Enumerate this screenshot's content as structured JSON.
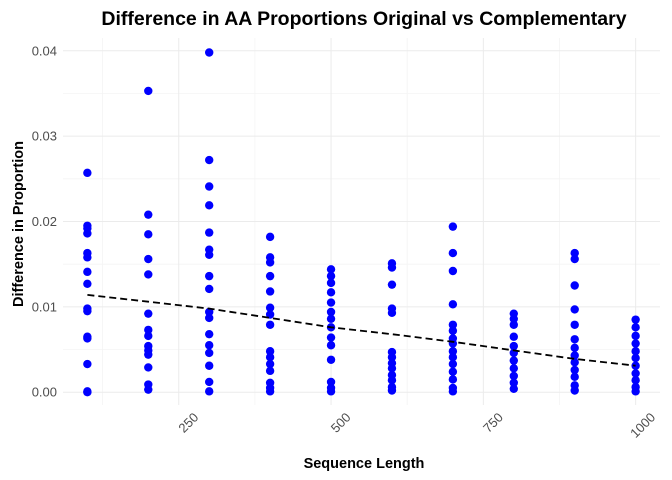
{
  "chart_data": {
    "type": "scatter",
    "title": "Difference in AA Proportions Original vs Complementary",
    "xlabel": "Sequence Length",
    "ylabel": "Difference in Proportion",
    "xlim": [
      60,
      1040
    ],
    "ylim": [
      -0.0015,
      0.0415
    ],
    "x_ticks": [
      250,
      500,
      750,
      1000
    ],
    "x_tick_labels": [
      "250",
      "500",
      "750",
      "1000"
    ],
    "y_ticks": [
      0.0,
      0.01,
      0.02,
      0.03,
      0.04
    ],
    "y_tick_labels": [
      "0.00",
      "0.01",
      "0.02",
      "0.03",
      "0.04"
    ],
    "grid": true,
    "point_color": "#0000ff",
    "trend_color": "#000000",
    "trend_style": "dashed",
    "trend_line": {
      "x": [
        100,
        200,
        300,
        400,
        500,
        600,
        700,
        800,
        900,
        1000
      ],
      "y": [
        0.0114,
        0.0106,
        0.0098,
        0.0087,
        0.0076,
        0.0068,
        0.0059,
        0.0049,
        0.0039,
        0.0031
      ]
    },
    "points": [
      [
        100,
        0.0257
      ],
      [
        100,
        0.0195
      ],
      [
        100,
        0.0192
      ],
      [
        100,
        0.0186
      ],
      [
        100,
        0.0163
      ],
      [
        100,
        0.0158
      ],
      [
        100,
        0.0141
      ],
      [
        100,
        0.0127
      ],
      [
        100,
        0.0098
      ],
      [
        100,
        0.0095
      ],
      [
        100,
        0.0065
      ],
      [
        100,
        0.0063
      ],
      [
        100,
        0.0033
      ],
      [
        100,
        0.0001
      ],
      [
        100,
        0.0
      ],
      [
        200,
        0.0353
      ],
      [
        200,
        0.0208
      ],
      [
        200,
        0.0185
      ],
      [
        200,
        0.0156
      ],
      [
        200,
        0.0138
      ],
      [
        200,
        0.0092
      ],
      [
        200,
        0.0073
      ],
      [
        200,
        0.0066
      ],
      [
        200,
        0.0054
      ],
      [
        200,
        0.0049
      ],
      [
        200,
        0.0044
      ],
      [
        200,
        0.0029
      ],
      [
        200,
        0.0009
      ],
      [
        200,
        0.0003
      ],
      [
        300,
        0.0398
      ],
      [
        300,
        0.0272
      ],
      [
        300,
        0.0241
      ],
      [
        300,
        0.0219
      ],
      [
        300,
        0.0187
      ],
      [
        300,
        0.0167
      ],
      [
        300,
        0.0161
      ],
      [
        300,
        0.0136
      ],
      [
        300,
        0.0121
      ],
      [
        300,
        0.0094
      ],
      [
        300,
        0.0087
      ],
      [
        300,
        0.0068
      ],
      [
        300,
        0.0055
      ],
      [
        300,
        0.0046
      ],
      [
        300,
        0.0031
      ],
      [
        300,
        0.0012
      ],
      [
        300,
        0.0001
      ],
      [
        400,
        0.0182
      ],
      [
        400,
        0.0158
      ],
      [
        400,
        0.0152
      ],
      [
        400,
        0.0136
      ],
      [
        400,
        0.0118
      ],
      [
        400,
        0.0099
      ],
      [
        400,
        0.0091
      ],
      [
        400,
        0.0079
      ],
      [
        400,
        0.0048
      ],
      [
        400,
        0.0041
      ],
      [
        400,
        0.0033
      ],
      [
        400,
        0.0025
      ],
      [
        400,
        0.0011
      ],
      [
        400,
        0.0005
      ],
      [
        400,
        0.0001
      ],
      [
        500,
        0.0144
      ],
      [
        500,
        0.0136
      ],
      [
        500,
        0.0128
      ],
      [
        500,
        0.0117
      ],
      [
        500,
        0.0105
      ],
      [
        500,
        0.0094
      ],
      [
        500,
        0.0086
      ],
      [
        500,
        0.0076
      ],
      [
        500,
        0.0064
      ],
      [
        500,
        0.0055
      ],
      [
        500,
        0.0038
      ],
      [
        500,
        0.0012
      ],
      [
        500,
        0.0005
      ],
      [
        500,
        0.0001
      ],
      [
        600,
        0.0151
      ],
      [
        600,
        0.0146
      ],
      [
        600,
        0.0126
      ],
      [
        600,
        0.0098
      ],
      [
        600,
        0.0093
      ],
      [
        600,
        0.0047
      ],
      [
        600,
        0.0041
      ],
      [
        600,
        0.0034
      ],
      [
        600,
        0.0028
      ],
      [
        600,
        0.002
      ],
      [
        600,
        0.0014
      ],
      [
        600,
        0.0006
      ],
      [
        600,
        0.0002
      ],
      [
        700,
        0.0194
      ],
      [
        700,
        0.0163
      ],
      [
        700,
        0.0142
      ],
      [
        700,
        0.0103
      ],
      [
        700,
        0.0079
      ],
      [
        700,
        0.0072
      ],
      [
        700,
        0.0063
      ],
      [
        700,
        0.0057
      ],
      [
        700,
        0.0048
      ],
      [
        700,
        0.0041
      ],
      [
        700,
        0.0033
      ],
      [
        700,
        0.0024
      ],
      [
        700,
        0.0015
      ],
      [
        700,
        0.0005
      ],
      [
        700,
        0.0001
      ],
      [
        800,
        0.0092
      ],
      [
        800,
        0.0086
      ],
      [
        800,
        0.0079
      ],
      [
        800,
        0.0065
      ],
      [
        800,
        0.0054
      ],
      [
        800,
        0.0046
      ],
      [
        800,
        0.0037
      ],
      [
        800,
        0.0028
      ],
      [
        800,
        0.0019
      ],
      [
        800,
        0.0011
      ],
      [
        800,
        0.0004
      ],
      [
        900,
        0.0163
      ],
      [
        900,
        0.0156
      ],
      [
        900,
        0.0125
      ],
      [
        900,
        0.0097
      ],
      [
        900,
        0.0079
      ],
      [
        900,
        0.0062
      ],
      [
        900,
        0.0052
      ],
      [
        900,
        0.0043
      ],
      [
        900,
        0.0035
      ],
      [
        900,
        0.0026
      ],
      [
        900,
        0.0018
      ],
      [
        900,
        0.0008
      ],
      [
        900,
        0.0002
      ],
      [
        1000,
        0.0085
      ],
      [
        1000,
        0.0076
      ],
      [
        1000,
        0.0066
      ],
      [
        1000,
        0.0057
      ],
      [
        1000,
        0.0048
      ],
      [
        1000,
        0.004
      ],
      [
        1000,
        0.0031
      ],
      [
        1000,
        0.0022
      ],
      [
        1000,
        0.0014
      ],
      [
        1000,
        0.0006
      ],
      [
        1000,
        0.0001
      ]
    ]
  }
}
